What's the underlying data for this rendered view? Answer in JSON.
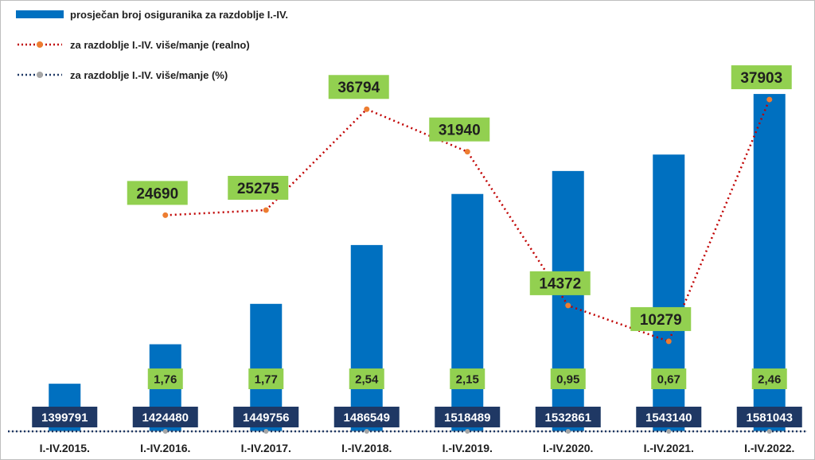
{
  "chart_data": {
    "type": "bar",
    "categories": [
      "I.-IV.2015.",
      "I.-IV.2016.",
      "I.-IV.2017.",
      "I.-IV.2018.",
      "I.-IV.2019.",
      "I.-IV.2020.",
      "I.-IV.2021.",
      "I.-IV.2022."
    ],
    "series": [
      {
        "name": "prosječan broj osiguranika za razdoblje I.-IV.",
        "kind": "bar",
        "color": "#0070c0",
        "values": [
          1399791,
          1424480,
          1449756,
          1486549,
          1518489,
          1532861,
          1543140,
          1581043
        ],
        "labels": [
          "1399791",
          "1424480",
          "1449756",
          "1486549",
          "1518489",
          "1532861",
          "1543140",
          "1581043"
        ]
      },
      {
        "name": "za razdoblje I.-IV. više/manje (realno)",
        "kind": "line",
        "color": "#ed7d31",
        "line_style": "dotted",
        "values": [
          null,
          24690,
          25275,
          36794,
          31940,
          14372,
          10279,
          37903
        ],
        "labels": [
          "",
          "24690",
          "25275",
          "36794",
          "31940",
          "14372",
          "10279",
          "37903"
        ]
      },
      {
        "name": "za razdoblje I.-IV. više/manje (%)",
        "kind": "line",
        "color": "#1f3864",
        "line_style": "dotted",
        "values": [
          null,
          1.76,
          1.77,
          2.54,
          2.15,
          0.95,
          0.67,
          2.46
        ],
        "labels": [
          "",
          "1,76",
          "1,77",
          "2,54",
          "2,15",
          "0,95",
          "0,67",
          "2,46"
        ]
      }
    ],
    "bar_axis_range": [
      1370000,
      1600000
    ],
    "line_axis_range": [
      0,
      42000
    ],
    "grid": false,
    "legend_position": "top-left",
    "colors": {
      "bar": "#0070c0",
      "realno_line": "#c00000",
      "realno_marker": "#ed7d31",
      "percent_line": "#1f3864",
      "percent_marker": "#a6a6a6",
      "value_label_bg": "#1f3864",
      "value_label_text": "#ffffff",
      "green_label_bg": "#92d050",
      "green_label_text": "#1f1f1f"
    }
  }
}
